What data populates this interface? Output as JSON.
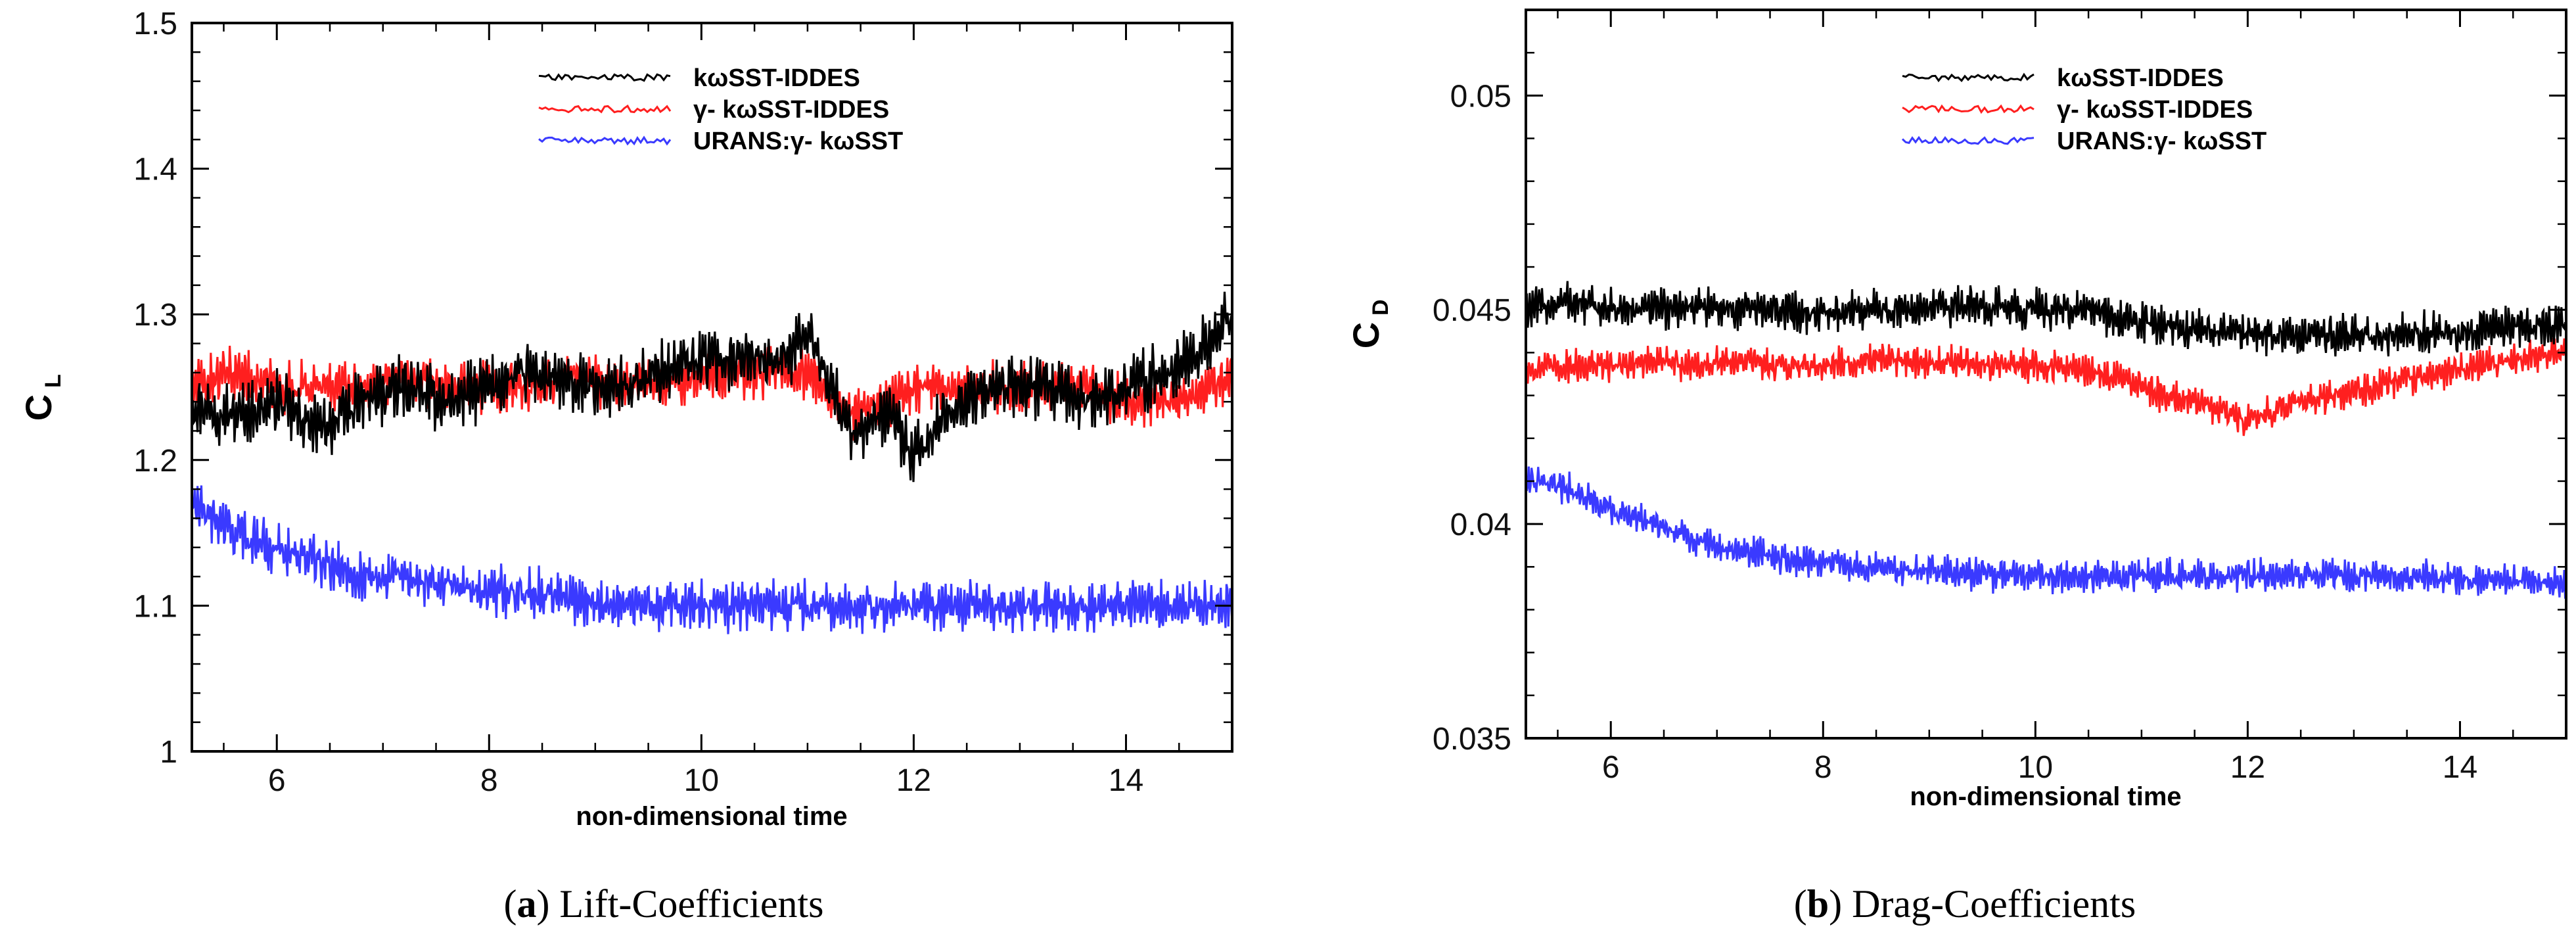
{
  "chart_data": [
    {
      "type": "line",
      "panel": "a",
      "caption_label": "a",
      "caption_text": "Lift-Coefficients",
      "xlabel": "non-dimensional time",
      "ylabel": "C",
      "ylabel_sub": "L",
      "xlim": [
        5.2,
        15
      ],
      "ylim": [
        1.0,
        1.5
      ],
      "xticks": [
        "6",
        "8",
        "10",
        "12",
        "14"
      ],
      "yticks": [
        "1",
        "1.1",
        "1.2",
        "1.3",
        "1.4",
        "1.5"
      ],
      "legend_position": "top-center",
      "series": [
        {
          "name": "kωSST-IDDES",
          "color": "#000000",
          "x": [
            5.2,
            5.6,
            6.0,
            6.4,
            6.8,
            7.2,
            7.6,
            8.0,
            8.4,
            8.8,
            9.2,
            9.6,
            10.0,
            10.4,
            10.8,
            11.0,
            11.4,
            11.8,
            12.0,
            12.4,
            12.8,
            13.2,
            13.6,
            14.0,
            14.4,
            14.8,
            15.0
          ],
          "values": [
            1.24,
            1.23,
            1.24,
            1.22,
            1.24,
            1.25,
            1.24,
            1.25,
            1.26,
            1.25,
            1.25,
            1.26,
            1.27,
            1.27,
            1.27,
            1.29,
            1.22,
            1.23,
            1.2,
            1.24,
            1.25,
            1.25,
            1.24,
            1.25,
            1.26,
            1.28,
            1.3
          ],
          "noise": 0.022
        },
        {
          "name": "γ- kωSST-IDDES",
          "color": "#ff1f1f",
          "x": [
            5.2,
            5.6,
            6.0,
            6.4,
            6.8,
            7.2,
            7.6,
            8.0,
            8.4,
            8.8,
            9.2,
            9.6,
            10.0,
            10.4,
            10.8,
            11.0,
            11.4,
            11.8,
            12.0,
            12.4,
            12.8,
            13.2,
            13.6,
            14.0,
            14.4,
            14.8,
            15.0
          ],
          "values": [
            1.25,
            1.26,
            1.25,
            1.25,
            1.25,
            1.26,
            1.25,
            1.25,
            1.25,
            1.26,
            1.25,
            1.25,
            1.26,
            1.26,
            1.26,
            1.26,
            1.23,
            1.24,
            1.25,
            1.25,
            1.25,
            1.25,
            1.25,
            1.24,
            1.24,
            1.25,
            1.26
          ],
          "noise": 0.018
        },
        {
          "name": "URANS:γ- kωSST",
          "color": "#3a3aff",
          "x": [
            5.2,
            5.6,
            6.0,
            6.4,
            6.8,
            7.2,
            7.6,
            8.0,
            8.4,
            8.8,
            9.2,
            9.6,
            10.0,
            10.4,
            10.8,
            11.2,
            11.6,
            12.0,
            12.4,
            12.8,
            13.2,
            13.6,
            14.0,
            14.4,
            14.8,
            15.0
          ],
          "values": [
            1.17,
            1.15,
            1.14,
            1.13,
            1.12,
            1.12,
            1.115,
            1.11,
            1.11,
            1.105,
            1.1,
            1.1,
            1.1,
            1.1,
            1.1,
            1.1,
            1.1,
            1.1,
            1.1,
            1.1,
            1.1,
            1.1,
            1.1,
            1.1,
            1.1,
            1.1
          ],
          "noise": 0.018
        }
      ]
    },
    {
      "type": "line",
      "panel": "b",
      "caption_label": "b",
      "caption_text": "Drag-Coefficients",
      "xlabel": "non-dimensional time",
      "ylabel": "C",
      "ylabel_sub": "D",
      "xlim": [
        5.2,
        15
      ],
      "ylim": [
        0.035,
        0.052
      ],
      "xticks": [
        "6",
        "8",
        "10",
        "12",
        "14"
      ],
      "yticks": [
        "0.035",
        "0.04",
        "0.045",
        "0.05"
      ],
      "legend_position": "top-center",
      "series": [
        {
          "name": "kωSST-IDDES",
          "color": "#000000",
          "x": [
            5.2,
            5.6,
            6.0,
            6.4,
            6.8,
            7.2,
            7.6,
            8.0,
            8.4,
            8.8,
            9.2,
            9.6,
            10.0,
            10.4,
            10.8,
            11.2,
            11.6,
            12.0,
            12.4,
            12.8,
            13.2,
            13.6,
            14.0,
            14.4,
            14.8,
            15.0
          ],
          "values": [
            0.045,
            0.0452,
            0.045,
            0.045,
            0.0451,
            0.045,
            0.045,
            0.0449,
            0.045,
            0.045,
            0.0451,
            0.0451,
            0.045,
            0.045,
            0.0448,
            0.0446,
            0.0445,
            0.0445,
            0.0444,
            0.0444,
            0.0444,
            0.0445,
            0.0444,
            0.0446,
            0.0446,
            0.0446
          ],
          "noise": 0.0005
        },
        {
          "name": "γ- kωSST-IDDES",
          "color": "#ff1f1f",
          "x": [
            5.2,
            5.6,
            6.0,
            6.4,
            6.8,
            7.2,
            7.6,
            8.0,
            8.4,
            8.8,
            9.2,
            9.6,
            10.0,
            10.4,
            10.8,
            11.2,
            11.6,
            12.0,
            12.4,
            12.8,
            13.2,
            13.6,
            14.0,
            14.4,
            14.8,
            15.0
          ],
          "values": [
            0.0436,
            0.0437,
            0.0437,
            0.0438,
            0.0437,
            0.0438,
            0.0437,
            0.0437,
            0.0438,
            0.0438,
            0.0438,
            0.0437,
            0.0437,
            0.0436,
            0.0434,
            0.043,
            0.0428,
            0.0424,
            0.0428,
            0.043,
            0.0432,
            0.0434,
            0.0436,
            0.0438,
            0.044,
            0.0441
          ],
          "noise": 0.0004
        },
        {
          "name": "URANS:γ- kωSST",
          "color": "#3a3aff",
          "x": [
            5.2,
            5.6,
            6.0,
            6.4,
            6.8,
            7.2,
            7.6,
            8.0,
            8.4,
            8.8,
            9.2,
            9.6,
            10.0,
            10.4,
            10.8,
            11.2,
            11.6,
            12.0,
            12.4,
            12.8,
            13.2,
            13.6,
            14.0,
            14.4,
            14.8,
            15.0
          ],
          "values": [
            0.041,
            0.0408,
            0.0403,
            0.04,
            0.0396,
            0.0394,
            0.0392,
            0.0391,
            0.039,
            0.0389,
            0.0389,
            0.0388,
            0.0388,
            0.0388,
            0.0388,
            0.0388,
            0.0388,
            0.0388,
            0.0388,
            0.0388,
            0.0388,
            0.0388,
            0.0387,
            0.0387,
            0.0387,
            0.0386
          ],
          "noise": 0.0004
        }
      ]
    }
  ]
}
